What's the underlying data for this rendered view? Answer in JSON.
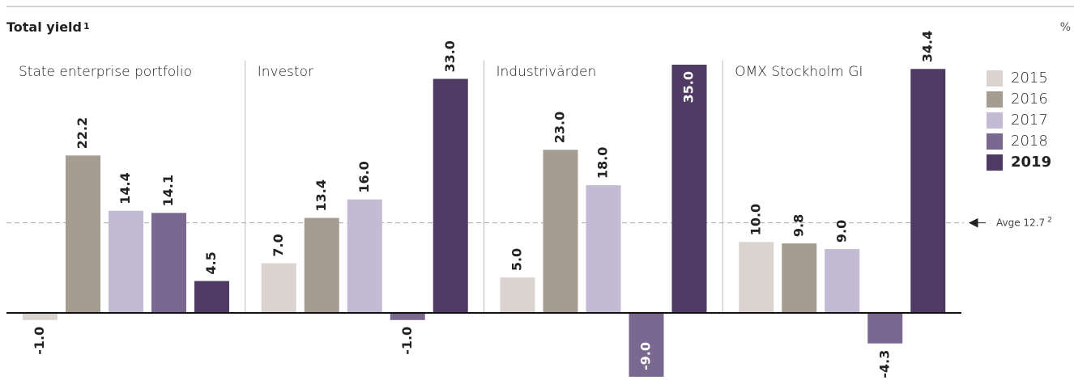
{
  "chart_data": {
    "type": "bar",
    "title": "Total yield",
    "title_note": "1",
    "y_unit": "%",
    "categories": [
      "State enterprise portfolio",
      "Investor",
      "Industrivärden",
      "OMX Stockholm GI"
    ],
    "series": [
      {
        "name": "2015",
        "color": "#dbd3cf",
        "values": [
          -1.0,
          7.0,
          5.0,
          10.0
        ],
        "value_labels": [
          "-1.0",
          "7.0",
          "5.0",
          "10.0"
        ]
      },
      {
        "name": "2016",
        "color": "#a59d91",
        "values": [
          22.2,
          13.4,
          23.0,
          9.8
        ],
        "value_labels": [
          "22.2",
          "13.4",
          "23.0",
          "9.8"
        ]
      },
      {
        "name": "2017",
        "color": "#c3bad4",
        "values": [
          14.4,
          16.0,
          18.0,
          9.0
        ],
        "value_labels": [
          "14.4",
          "16.0",
          "18.0",
          "9.0"
        ]
      },
      {
        "name": "2018",
        "color": "#7b6890",
        "values": [
          14.1,
          -1.0,
          -9.0,
          -4.3
        ],
        "value_labels": [
          "14.1",
          "-1.0",
          "-9.0",
          "-4.3"
        ]
      },
      {
        "name": "2019",
        "color": "#4e3a62",
        "values": [
          4.5,
          33.0,
          35.0,
          34.4
        ],
        "value_labels": [
          "4.5",
          "33.0",
          "35.0",
          "34.4"
        ]
      }
    ],
    "ylim": [
      -9,
      35
    ],
    "annotation": {
      "text": "Avge 12.7",
      "note": "2",
      "value": 12.7
    }
  }
}
